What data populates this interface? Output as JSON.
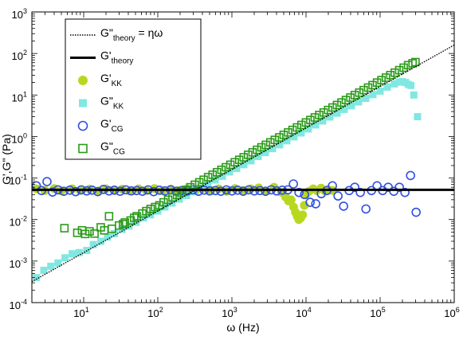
{
  "chart_data": {
    "type": "scatter",
    "title": "",
    "xlabel": "ω (Hz)",
    "ylabel": "G',G\" (Pa)",
    "xscale": "log",
    "yscale": "log",
    "xlim": [
      2,
      1000000
    ],
    "ylim": [
      0.0001,
      1000
    ],
    "grid": false,
    "legend_position": "top-left",
    "x_tick_labels": [
      {
        "base": "10",
        "exp": "1"
      },
      {
        "base": "10",
        "exp": "2"
      },
      {
        "base": "10",
        "exp": "3"
      },
      {
        "base": "10",
        "exp": "4"
      },
      {
        "base": "10",
        "exp": "5"
      },
      {
        "base": "10",
        "exp": "6"
      }
    ],
    "y_tick_labels": [
      {
        "base": "10",
        "exp": "-4"
      },
      {
        "base": "10",
        "exp": "-3"
      },
      {
        "base": "10",
        "exp": "-2"
      },
      {
        "base": "10",
        "exp": "-1"
      },
      {
        "base": "10",
        "exp": "0"
      },
      {
        "base": "10",
        "exp": "1"
      },
      {
        "base": "10",
        "exp": "2"
      },
      {
        "base": "10",
        "exp": "3"
      }
    ],
    "legend": [
      {
        "main": "G\"",
        "sub": "theory",
        "suffix": " = ηω"
      },
      {
        "main": "G'",
        "sub": "theory",
        "suffix": ""
      },
      {
        "main": "G'",
        "sub": "KK",
        "suffix": ""
      },
      {
        "main": "G\"",
        "sub": "KK",
        "suffix": ""
      },
      {
        "main": "G'",
        "sub": "CG",
        "suffix": ""
      },
      {
        "main": "G\"",
        "sub": "CG",
        "suffix": ""
      }
    ],
    "series": [
      {
        "key": "g2_theory",
        "style": "dotted-line",
        "color": "#000000",
        "x": [
          2,
          1000000
        ],
        "y": [
          0.00032,
          160
        ]
      },
      {
        "key": "g1_theory",
        "style": "solid-line",
        "color": "#000000",
        "x": [
          2,
          1000000
        ],
        "y": [
          0.052,
          0.052
        ]
      },
      {
        "key": "g1_kk",
        "style": "filled-circle",
        "color": "#b8d820",
        "x": [
          2.3,
          3,
          4,
          5,
          7,
          9,
          12,
          16,
          20,
          26,
          33,
          42,
          55,
          70,
          90,
          115,
          150,
          190,
          250,
          320,
          400,
          520,
          660,
          850,
          1100,
          1400,
          1800,
          2300,
          2900,
          3700,
          4700,
          5300,
          5800,
          6300,
          6800,
          7200,
          7600,
          8000,
          8500,
          9000,
          9500,
          10000,
          11000,
          12500,
          14000,
          16000,
          18000,
          20000,
          23000
        ],
        "y": [
          0.055,
          0.05,
          0.056,
          0.049,
          0.055,
          0.05,
          0.054,
          0.049,
          0.055,
          0.05,
          0.054,
          0.049,
          0.055,
          0.05,
          0.056,
          0.049,
          0.054,
          0.05,
          0.055,
          0.049,
          0.056,
          0.05,
          0.055,
          0.048,
          0.056,
          0.05,
          0.055,
          0.058,
          0.048,
          0.06,
          0.045,
          0.035,
          0.028,
          0.03,
          0.02,
          0.015,
          0.012,
          0.01,
          0.011,
          0.013,
          0.022,
          0.04,
          0.048,
          0.055,
          0.05,
          0.057,
          0.049,
          0.053,
          0.05
        ]
      },
      {
        "key": "g2_kk",
        "style": "filled-square",
        "color": "#80e8e0",
        "x": [
          2.3,
          2.9,
          3.6,
          4.5,
          5.6,
          7,
          8.7,
          11,
          13.5,
          17,
          21,
          26,
          33,
          41,
          51,
          64,
          80,
          100,
          125,
          156,
          195,
          245,
          305,
          380,
          475,
          595,
          745,
          930,
          1160,
          1450,
          1810,
          2260,
          2830,
          3530,
          4410,
          5510,
          6890,
          8600,
          10750,
          13440,
          16800,
          21000,
          26250,
          32800,
          41000,
          51200,
          64000,
          80000,
          100000,
          125000,
          156000,
          180000,
          200000,
          220000,
          240000,
          260000,
          285000,
          320000
        ],
        "y": [
          0.0004,
          0.0006,
          0.00075,
          0.0009,
          0.0012,
          0.0015,
          0.0016,
          0.0018,
          0.0025,
          0.003,
          0.0038,
          0.0046,
          0.0058,
          0.007,
          0.0086,
          0.011,
          0.013,
          0.016,
          0.02,
          0.025,
          0.031,
          0.038,
          0.047,
          0.058,
          0.072,
          0.09,
          0.11,
          0.14,
          0.17,
          0.21,
          0.26,
          0.33,
          0.41,
          0.51,
          0.63,
          0.79,
          0.98,
          1.22,
          1.52,
          1.9,
          2.37,
          2.95,
          3.65,
          4.5,
          5.5,
          6.8,
          8.3,
          10.2,
          12.4,
          15.5,
          18.5,
          20.5,
          21,
          20,
          18,
          17,
          10,
          3
        ]
      },
      {
        "key": "g1_cg",
        "style": "open-circle",
        "color": "#3050e0",
        "x": [
          2.3,
          2.7,
          3.2,
          3.8,
          4.5,
          5.4,
          6.5,
          7.8,
          9.3,
          11,
          13,
          15.5,
          18.5,
          22,
          26,
          31,
          37,
          44,
          52,
          62,
          74,
          88,
          105,
          125,
          149,
          177,
          211,
          251,
          298,
          355,
          422,
          502,
          597,
          710,
          844,
          1004,
          1194,
          1420,
          1689,
          2009,
          2389,
          2841,
          3379,
          4018,
          4779,
          5683,
          6759,
          8038,
          9559,
          11368,
          13519,
          16077,
          19119,
          22737,
          27039,
          32155,
          38239,
          45474,
          54078,
          64310,
          76478,
          90949,
          108157,
          128621,
          152957,
          181898,
          216314,
          257243,
          305915
        ],
        "y": [
          0.065,
          0.05,
          0.082,
          0.046,
          0.052,
          0.048,
          0.051,
          0.047,
          0.052,
          0.049,
          0.051,
          0.047,
          0.053,
          0.049,
          0.051,
          0.048,
          0.052,
          0.049,
          0.05,
          0.048,
          0.052,
          0.047,
          0.051,
          0.049,
          0.052,
          0.048,
          0.05,
          0.049,
          0.052,
          0.048,
          0.051,
          0.049,
          0.05,
          0.048,
          0.052,
          0.049,
          0.051,
          0.048,
          0.052,
          0.049,
          0.05,
          0.048,
          0.052,
          0.049,
          0.051,
          0.052,
          0.072,
          0.045,
          0.04,
          0.026,
          0.024,
          0.042,
          0.05,
          0.065,
          0.037,
          0.021,
          0.05,
          0.06,
          0.045,
          0.018,
          0.05,
          0.065,
          0.05,
          0.06,
          0.048,
          0.06,
          0.045,
          0.115,
          0.015
        ]
      },
      {
        "key": "g2_cg",
        "style": "open-square",
        "color": "#2a9a18",
        "x": [
          5.5,
          8.2,
          9.5,
          10.5,
          12,
          14,
          17,
          19,
          22,
          24,
          30,
          34,
          36,
          43,
          48,
          52,
          62,
          70,
          80,
          92,
          105,
          120,
          138,
          158,
          182,
          209,
          240,
          275,
          316,
          363,
          416,
          478,
          549,
          630,
          723,
          830,
          953,
          1094,
          1256,
          1442,
          1656,
          1901,
          2182,
          2505,
          2876,
          3302,
          3791,
          4352,
          4997,
          5737,
          6586,
          7561,
          8680,
          9966,
          11441,
          13135,
          15080,
          17313,
          19877,
          22820,
          26199,
          30078,
          34532,
          39645,
          45516,
          52255,
          59993,
          68876,
          79074,
          90783,
          104225,
          119658,
          137376,
          157717,
          181070,
          207881,
          238663,
          274001,
          300000
        ],
        "y": [
          0.0062,
          0.0048,
          0.0055,
          0.0045,
          0.0052,
          0.0046,
          0.0065,
          0.0055,
          0.012,
          0.006,
          0.0072,
          0.0078,
          0.0085,
          0.0095,
          0.011,
          0.012,
          0.014,
          0.016,
          0.018,
          0.02,
          0.022,
          0.026,
          0.03,
          0.034,
          0.039,
          0.045,
          0.052,
          0.06,
          0.069,
          0.079,
          0.091,
          0.105,
          0.12,
          0.138,
          0.158,
          0.182,
          0.209,
          0.24,
          0.275,
          0.316,
          0.363,
          0.416,
          0.478,
          0.549,
          0.63,
          0.723,
          0.83,
          0.953,
          1.094,
          1.256,
          1.442,
          1.656,
          1.9,
          2.18,
          2.5,
          2.88,
          3.3,
          3.79,
          4.35,
          5,
          5.74,
          6.59,
          7.56,
          8.68,
          9.97,
          11.4,
          13.1,
          15.1,
          17.3,
          19.9,
          22.8,
          26.2,
          30.1,
          34.5,
          39.6,
          45.5,
          52.3,
          58,
          62
        ]
      }
    ]
  }
}
